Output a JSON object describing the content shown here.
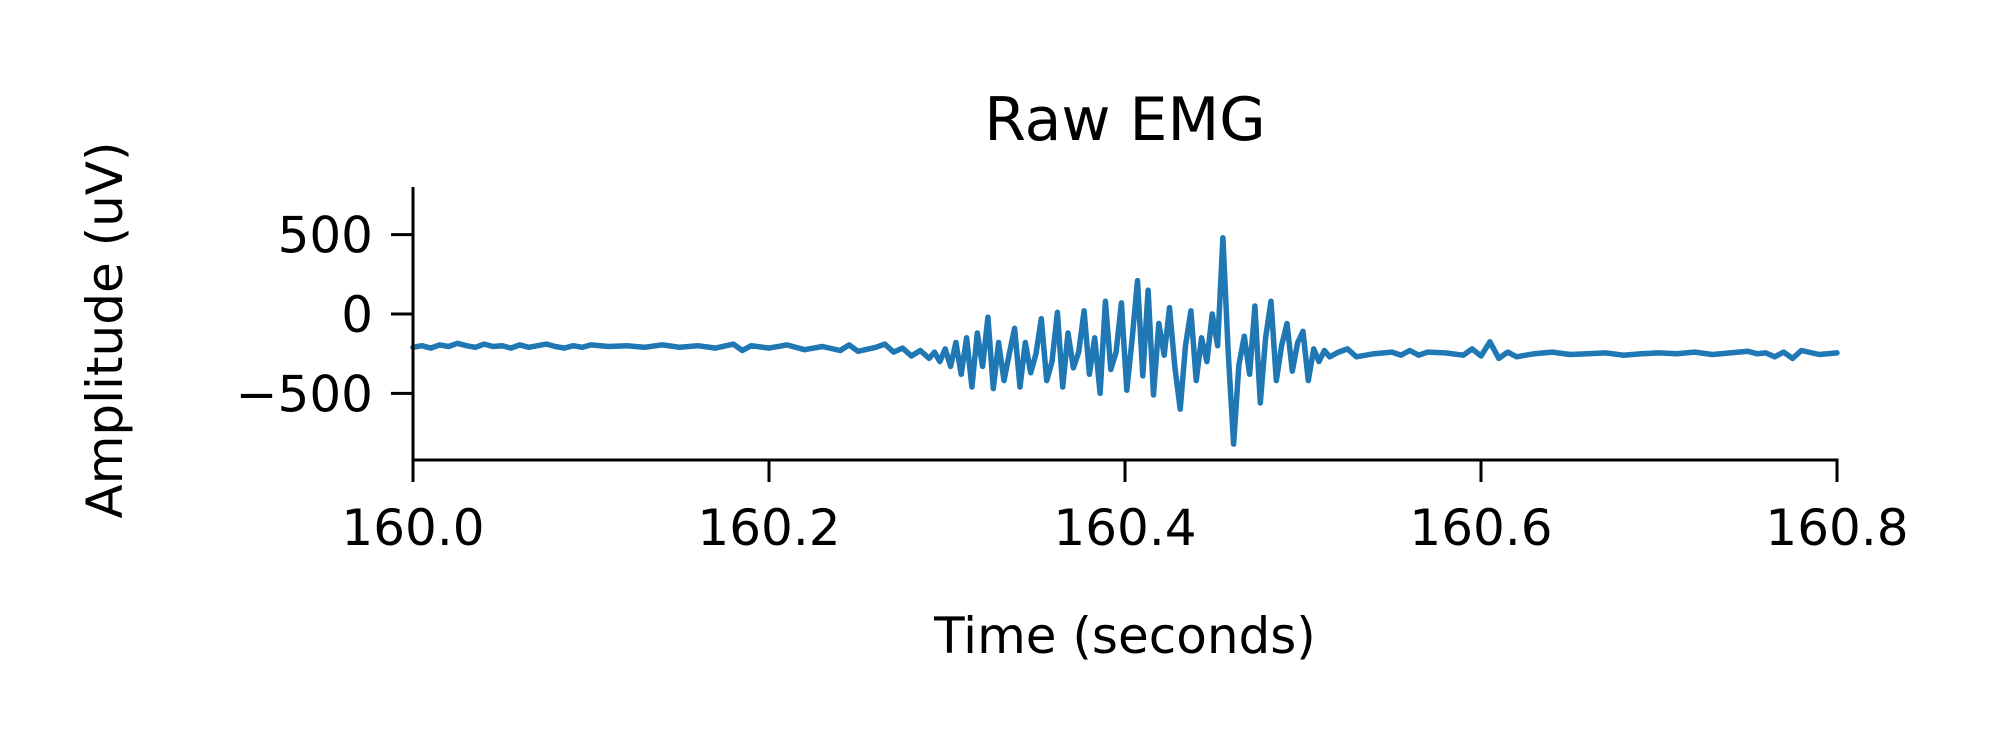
{
  "chart_data": {
    "type": "line",
    "title": "Raw EMG",
    "xlabel": "Time (seconds)",
    "ylabel": "Amplitude (uV)",
    "xlim": [
      160.0,
      160.8
    ],
    "ylim": [
      -920,
      800
    ],
    "x_ticks": [
      160.0,
      160.2,
      160.4,
      160.6,
      160.8
    ],
    "x_tick_labels": [
      "160.0",
      "160.2",
      "160.4",
      "160.6",
      "160.8"
    ],
    "y_ticks": [
      500,
      0,
      -500
    ],
    "y_tick_labels": [
      "500",
      "0",
      "−500"
    ],
    "grid": false,
    "legend": "none",
    "colors": {
      "series": "#1f77b4",
      "axes": "#000000"
    },
    "series": [
      {
        "x": [
          160.0,
          160.005,
          160.01,
          160.015,
          160.02,
          160.025,
          160.03,
          160.035,
          160.04,
          160.045,
          160.05,
          160.055,
          160.06,
          160.065,
          160.07,
          160.075,
          160.08,
          160.085,
          160.09,
          160.095,
          160.1,
          160.11,
          160.12,
          160.13,
          160.14,
          160.15,
          160.16,
          160.17,
          160.18,
          160.185,
          160.19,
          160.2,
          160.21,
          160.22,
          160.23,
          160.24,
          160.245,
          160.25,
          160.26,
          160.265,
          160.27,
          160.275,
          160.28,
          160.285,
          160.29,
          160.293,
          160.296,
          160.299,
          160.302,
          160.305,
          160.308,
          160.311,
          160.314,
          160.317,
          160.32,
          160.323,
          160.326,
          160.329,
          160.332,
          160.335,
          160.338,
          160.341,
          160.344,
          160.347,
          160.35,
          160.353,
          160.356,
          160.359,
          160.362,
          160.365,
          160.368,
          160.371,
          160.374,
          160.377,
          160.38,
          160.383,
          160.386,
          160.389,
          160.392,
          160.395,
          160.398,
          160.401,
          160.404,
          160.407,
          160.41,
          160.413,
          160.416,
          160.419,
          160.422,
          160.425,
          160.428,
          160.431,
          160.434,
          160.437,
          160.44,
          160.443,
          160.446,
          160.449,
          160.452,
          160.455,
          160.458,
          160.461,
          160.464,
          160.467,
          160.47,
          160.473,
          160.476,
          160.479,
          160.482,
          160.485,
          160.488,
          160.491,
          160.494,
          160.497,
          160.5,
          160.503,
          160.506,
          160.509,
          160.512,
          160.515,
          160.52,
          160.525,
          160.53,
          160.54,
          160.55,
          160.555,
          160.56,
          160.565,
          160.57,
          160.58,
          160.59,
          160.595,
          160.6,
          160.605,
          160.61,
          160.615,
          160.62,
          160.63,
          160.64,
          160.65,
          160.66,
          160.67,
          160.68,
          160.69,
          160.7,
          160.71,
          160.72,
          160.73,
          160.74,
          160.75,
          160.755,
          160.76,
          160.765,
          160.77,
          160.775,
          160.78,
          160.79,
          160.8
        ],
        "y": [
          -210,
          -200,
          -215,
          -195,
          -205,
          -185,
          -200,
          -210,
          -190,
          -205,
          -200,
          -215,
          -195,
          -210,
          -200,
          -190,
          -205,
          -215,
          -200,
          -210,
          -195,
          -205,
          -200,
          -210,
          -195,
          -210,
          -200,
          -215,
          -190,
          -230,
          -200,
          -215,
          -195,
          -225,
          -205,
          -230,
          -195,
          -235,
          -210,
          -190,
          -240,
          -215,
          -265,
          -230,
          -280,
          -240,
          -300,
          -220,
          -330,
          -180,
          -380,
          -150,
          -460,
          -120,
          -330,
          -20,
          -470,
          -180,
          -420,
          -250,
          -90,
          -460,
          -180,
          -370,
          -250,
          -30,
          -420,
          -300,
          10,
          -460,
          -120,
          -340,
          -240,
          20,
          -380,
          -150,
          -500,
          80,
          -350,
          -240,
          70,
          -480,
          -160,
          210,
          -390,
          150,
          -510,
          -60,
          -260,
          40,
          -330,
          -600,
          -200,
          20,
          -420,
          -150,
          -300,
          0,
          -200,
          480,
          -240,
          -820,
          -320,
          -140,
          -380,
          50,
          -560,
          -150,
          80,
          -420,
          -200,
          -60,
          -360,
          -180,
          -110,
          -420,
          -220,
          -300,
          -230,
          -270,
          -240,
          -220,
          -270,
          -250,
          -240,
          -260,
          -230,
          -260,
          -240,
          -245,
          -260,
          -220,
          -265,
          -175,
          -280,
          -240,
          -270,
          -250,
          -240,
          -255,
          -250,
          -245,
          -260,
          -250,
          -245,
          -250,
          -240,
          -255,
          -245,
          -235,
          -250,
          -245,
          -270,
          -240,
          -280,
          -230,
          -255,
          -245
        ]
      }
    ]
  }
}
